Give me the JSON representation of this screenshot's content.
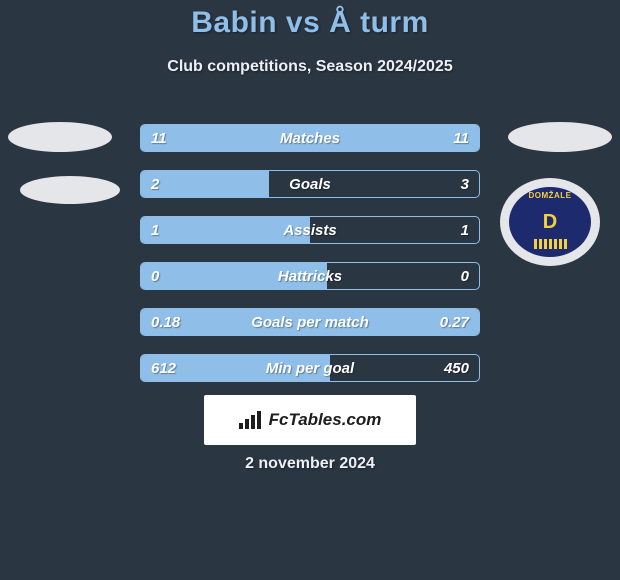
{
  "header": {
    "title": "Babin vs Å turm",
    "title_color": "#8fbfe8",
    "subtitle": "Club competitions, Season 2024/2025"
  },
  "bars": {
    "border_color": "#8fbfe8",
    "fill_color": "#8fbfe8",
    "bg_color": "#2b3643",
    "text_color": "#ffffff",
    "rows": [
      {
        "label": "Matches",
        "left": "11",
        "right": "11",
        "left_pct": 50,
        "right_pct": 50
      },
      {
        "label": "Goals",
        "left": "2",
        "right": "3",
        "left_pct": 38,
        "right_pct": 0
      },
      {
        "label": "Assists",
        "left": "1",
        "right": "1",
        "left_pct": 50,
        "right_pct": 0
      },
      {
        "label": "Hattricks",
        "left": "0",
        "right": "0",
        "left_pct": 55,
        "right_pct": 0
      },
      {
        "label": "Goals per match",
        "left": "0.18",
        "right": "0.27",
        "left_pct": 100,
        "right_pct": 0
      },
      {
        "label": "Min per goal",
        "left": "612",
        "right": "450",
        "left_pct": 56,
        "right_pct": 0
      }
    ]
  },
  "badge": {
    "club_text": "DOMŽALE",
    "letter": "D",
    "bg": "#1e2a6e",
    "fg": "#f4d03f"
  },
  "footer": {
    "brand": "FcTables.com",
    "date": "2 november 2024"
  },
  "colors": {
    "page_bg": "#2b3643",
    "light": "#e4e6e9"
  }
}
